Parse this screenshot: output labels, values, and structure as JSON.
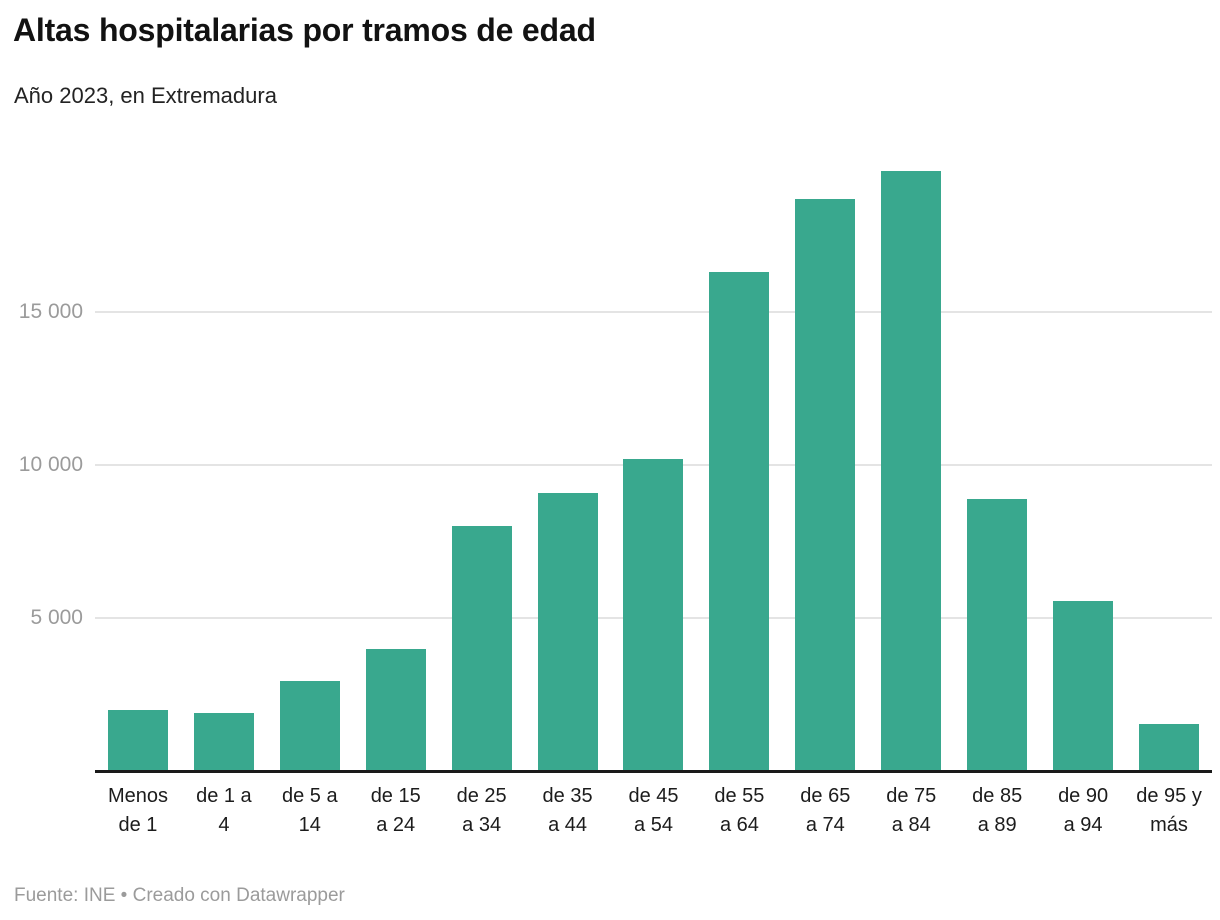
{
  "header": {
    "title": "Altas hospitalarias por tramos de edad",
    "subtitle": "Año 2023, en Extremadura"
  },
  "footer": {
    "text": "Fuente: INE • Creado con Datawrapper"
  },
  "colors": {
    "bar": "#39a88e",
    "grid": "#e4e4e4",
    "axis": "#1a1a1a",
    "ytick_text": "#9b9b9b",
    "xlabel_text": "#1c1c1c",
    "title_text": "#121212",
    "subtitle_text": "#232323",
    "footer_text": "#9b9b9b"
  },
  "chart_data": {
    "type": "bar",
    "title": "Altas hospitalarias por tramos de edad",
    "subtitle": "Año 2023, en Extremadura",
    "categories": [
      "Menos de 1",
      "de 1 a 4",
      "de 5 a 14",
      "de 15 a 24",
      "de 25 a 34",
      "de 35 a 44",
      "de 45 a 54",
      "de 55 a 64",
      "de 65 a 74",
      "de 75 a 84",
      "de 85 a 89",
      "de 90 a 94",
      "de 95 y más"
    ],
    "category_label_lines": [
      [
        "Menos",
        "de 1"
      ],
      [
        "de 1 a",
        "4"
      ],
      [
        "de 5 a",
        "14"
      ],
      [
        "de 15",
        "a 24"
      ],
      [
        "de 25",
        "a 34"
      ],
      [
        "de 35",
        "a 44"
      ],
      [
        "de 45",
        "a 54"
      ],
      [
        "de 55",
        "a 64"
      ],
      [
        "de 65",
        "a 74"
      ],
      [
        "de 75",
        "a 84"
      ],
      [
        "de 85",
        "a 89"
      ],
      [
        "de 90",
        "a 94"
      ],
      [
        "de 95 y",
        "más"
      ]
    ],
    "values": [
      2000,
      1900,
      2950,
      4000,
      8000,
      9100,
      10200,
      16300,
      18700,
      19600,
      8900,
      5550,
      1550
    ],
    "xlabel": "",
    "ylabel": "",
    "ylim": [
      0,
      20000
    ],
    "yticks": {
      "values": [
        5000,
        10000,
        15000
      ],
      "labels": [
        "5 000",
        "10 000",
        "15 000"
      ]
    },
    "grid": true,
    "legend": false,
    "bar_color": "#39a88e"
  }
}
